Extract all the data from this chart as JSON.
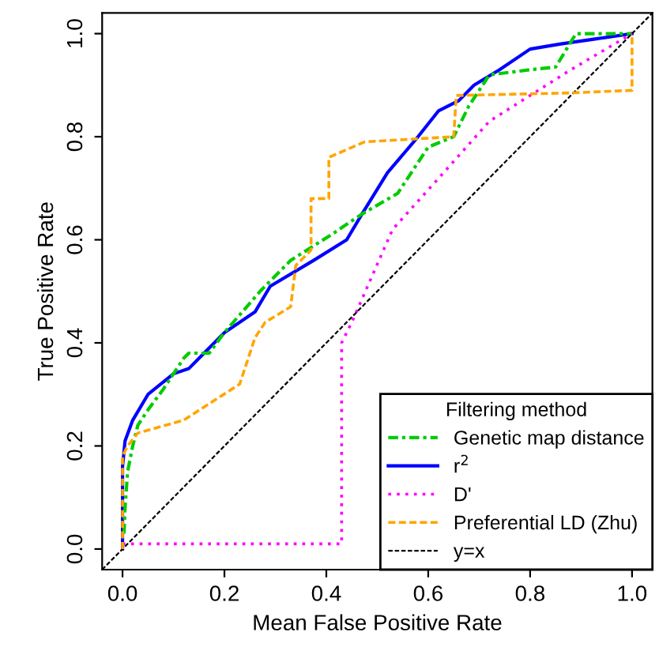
{
  "chart_data": {
    "type": "line",
    "xlabel": "Mean False Positive Rate",
    "ylabel": "True Positive Rate",
    "legend_title": "Filtering method",
    "legend": "bottom right",
    "grid": false,
    "xlim": [
      -0.04,
      1.04
    ],
    "ylim": [
      -0.04,
      1.04
    ],
    "xticks": [
      {
        "value": 0,
        "label": "0.0"
      },
      0.2,
      0.4,
      0.6,
      0.8,
      {
        "value": 1,
        "label": "1.0"
      }
    ],
    "yticks": [
      {
        "value": 0,
        "label": "0.0"
      },
      0.2,
      0.4,
      0.6,
      0.8,
      {
        "value": 1,
        "label": "1.0"
      }
    ],
    "series": [
      {
        "name": "Genetic map distance",
        "color": "#00cc00",
        "line_style": "dashdot",
        "x": [
          0.003,
          0.005,
          0.01,
          0.02,
          0.03,
          0.05,
          0.08,
          0.1,
          0.12,
          0.13,
          0.17,
          0.2,
          0.27,
          0.33,
          0.41,
          0.47,
          0.54,
          0.6,
          0.65,
          0.68,
          0.72,
          0.8,
          0.85,
          0.89,
          1
        ],
        "values": [
          0.03,
          0.08,
          0.15,
          0.2,
          0.24,
          0.27,
          0.31,
          0.34,
          0.37,
          0.38,
          0.38,
          0.42,
          0.5,
          0.56,
          0.61,
          0.65,
          0.69,
          0.78,
          0.8,
          0.86,
          0.92,
          0.93,
          0.935,
          1,
          1
        ]
      },
      {
        "name": "r$^{2}$",
        "color": "#0000ff",
        "line_style": "solid",
        "x": [
          0,
          0,
          0.005,
          0.02,
          0.05,
          0.1,
          0.13,
          0.17,
          0.2,
          0.26,
          0.29,
          0.375,
          0.44,
          0.47,
          0.52,
          0.58,
          0.62,
          0.66,
          0.69,
          0.74,
          0.8,
          0.86,
          0.93,
          1
        ],
        "values": [
          0,
          0.16,
          0.21,
          0.25,
          0.3,
          0.34,
          0.35,
          0.39,
          0.42,
          0.46,
          0.51,
          0.56,
          0.6,
          0.65,
          0.73,
          0.8,
          0.85,
          0.87,
          0.9,
          0.93,
          0.97,
          0.98,
          0.99,
          1
        ]
      },
      {
        "name": "D'",
        "color": "#ff00ff",
        "line_style": "dotted",
        "x": [
          0,
          0.43,
          0.43,
          0.45,
          0.53,
          0.63,
          0.72,
          0.88,
          1
        ],
        "values": [
          0.01,
          0.01,
          0.4,
          0.44,
          0.62,
          0.73,
          0.83,
          0.93,
          1
        ]
      },
      {
        "name": "Preferential LD (Zhu)",
        "color": "#ffa500",
        "line_style": "dashed",
        "x": [
          0,
          0,
          0.01,
          0.03,
          0.12,
          0.23,
          0.26,
          0.28,
          0.33,
          0.34,
          0.37,
          0.37,
          0.405,
          0.405,
          0.475,
          0.65,
          0.655,
          0.88,
          1,
          1
        ],
        "values": [
          0,
          0.18,
          0.2,
          0.225,
          0.25,
          0.32,
          0.41,
          0.44,
          0.47,
          0.55,
          0.58,
          0.68,
          0.68,
          0.76,
          0.79,
          0.8,
          0.88,
          0.885,
          0.89,
          1
        ]
      },
      {
        "name": "y=x",
        "color": "#000000",
        "line_style": "dashed",
        "x": [
          -0.04,
          1.04
        ],
        "values": [
          -0.04,
          1.04
        ]
      }
    ]
  }
}
